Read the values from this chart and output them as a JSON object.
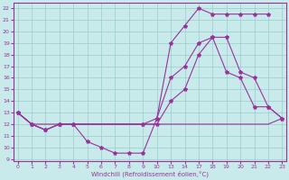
{
  "xlabel": "Windchill (Refroidissement éolien,°C)",
  "bg_color": "#c8eaea",
  "grid_color": "#99cccc",
  "line_color": "#993399",
  "xlabels": [
    "0",
    "1",
    "2",
    "3",
    "4",
    "5",
    "6",
    "7",
    "8",
    "9",
    "10",
    "1314",
    "",
    "1718",
    "",
    "1920",
    "",
    "2122",
    "",
    "23"
  ],
  "xtick_labels": [
    "0",
    "1",
    "2",
    "3",
    "4",
    "5",
    "6",
    "7",
    "8",
    "9",
    "10",
    "13",
    "14",
    "17",
    "18",
    "19",
    "20",
    "21",
    "22",
    "23"
  ],
  "yticks": [
    9,
    10,
    11,
    12,
    13,
    14,
    15,
    16,
    17,
    18,
    19,
    20,
    21,
    22
  ],
  "line1_x": [
    0,
    1,
    2,
    3,
    4,
    5,
    6,
    7,
    8,
    9,
    10,
    11,
    12,
    13,
    14,
    15,
    16,
    17,
    18
  ],
  "line1_y": [
    13,
    12,
    11.5,
    12,
    12,
    10.5,
    10,
    9.5,
    9.5,
    9.5,
    12.5,
    19.0,
    20.5,
    22,
    21.5,
    21.5,
    21.5,
    21.5,
    21.5
  ],
  "line2_x": [
    0,
    1,
    2,
    3,
    4,
    5,
    6,
    7,
    8,
    9,
    10,
    11,
    12,
    13,
    14,
    15,
    16,
    17,
    18,
    19
  ],
  "line2_y": [
    13,
    12,
    12,
    12,
    12,
    12,
    12,
    12,
    12,
    12,
    12,
    12,
    12,
    12,
    12,
    12,
    12,
    12,
    12,
    12.5
  ],
  "line3_x": [
    0,
    1,
    2,
    3,
    4,
    9,
    10,
    11,
    12,
    13,
    14,
    15,
    16,
    17,
    18,
    19
  ],
  "line3_y": [
    13,
    12,
    11.5,
    12,
    12,
    12,
    12.5,
    16,
    17,
    19,
    19.5,
    16.5,
    16,
    13.5,
    13.5,
    12.5
  ],
  "line4_x": [
    0,
    1,
    2,
    3,
    4,
    9,
    10,
    11,
    12,
    13,
    14,
    15,
    16,
    17,
    18,
    19
  ],
  "line4_y": [
    13,
    12,
    11.5,
    12,
    12,
    12,
    12,
    14,
    15,
    18,
    19.5,
    19.5,
    16.5,
    16,
    13.5,
    12.5
  ],
  "n_xticks": 20,
  "xlim": [
    -0.3,
    19.3
  ],
  "ylim": [
    8.8,
    22.5
  ]
}
